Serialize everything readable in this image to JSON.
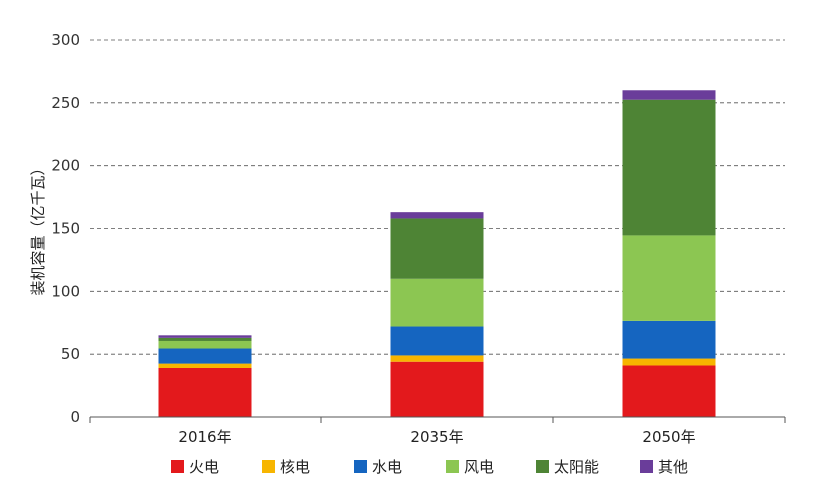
{
  "chart_data": {
    "type": "bar",
    "stacked": true,
    "title": "",
    "xlabel": "",
    "ylabel": "装机容量（亿千瓦）",
    "ylim": [
      0,
      300
    ],
    "yticks": [
      0,
      50,
      100,
      150,
      200,
      250,
      300
    ],
    "grid": "horizontal-dashed",
    "legend_position": "bottom",
    "categories": [
      "2016年",
      "2035年",
      "2050年"
    ],
    "series": [
      {
        "name": "火电",
        "color": "#e3191c",
        "values": [
          39,
          44,
          41
        ]
      },
      {
        "name": "核电",
        "color": "#f7b500",
        "values": [
          3.5,
          5,
          5.5
        ]
      },
      {
        "name": "水电",
        "color": "#1565c0",
        "values": [
          12,
          23,
          30
        ]
      },
      {
        "name": "风电",
        "color": "#8cc652",
        "values": [
          6,
          38,
          68
        ]
      },
      {
        "name": "太阳能",
        "color": "#4e8435",
        "values": [
          2.5,
          48,
          108
        ]
      },
      {
        "name": "其他",
        "color": "#6a3d9a",
        "values": [
          2,
          5,
          7.5
        ]
      }
    ]
  }
}
